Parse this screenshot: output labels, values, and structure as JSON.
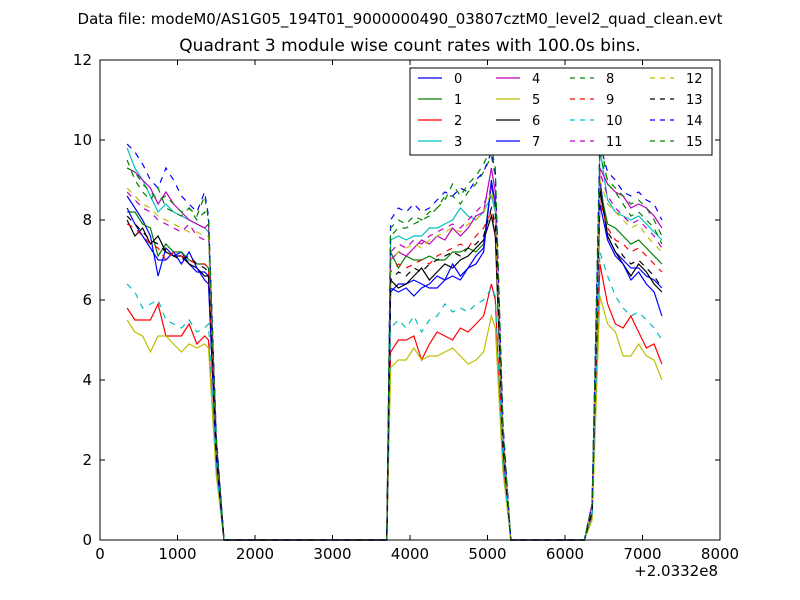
{
  "figure": {
    "suptitle": "Data file: modeM0/AS1G05_194T01_9000000490_03807cztM0_level2_quad_clean.evt",
    "x_offset_label": "+2.0332e8"
  },
  "chart_data": {
    "type": "line",
    "title": "Quadrant 3 module wise count rates with 100.0s bins.",
    "xlabel": "",
    "ylabel": "",
    "xlim": [
      0,
      8000
    ],
    "ylim": [
      0,
      12
    ],
    "x_ticks": [
      "0",
      "1000",
      "2000",
      "3000",
      "4000",
      "5000",
      "6000",
      "7000",
      "8000"
    ],
    "y_ticks": [
      "0",
      "2",
      "4",
      "6",
      "8",
      "10",
      "12"
    ],
    "grid": false,
    "legend_position": "top-right",
    "legend_columns": 4,
    "x": [
      350,
      450,
      550,
      650,
      750,
      850,
      950,
      1050,
      1150,
      1250,
      1350,
      1400,
      1500,
      1600,
      3700,
      3750,
      3850,
      3950,
      4050,
      4150,
      4250,
      4350,
      4450,
      4550,
      4650,
      4750,
      4850,
      4950,
      5050,
      5100,
      5200,
      5300,
      6250,
      6350,
      6450,
      6550,
      6650,
      6750,
      6850,
      6950,
      7050,
      7150,
      7250
    ],
    "series": [
      {
        "name": "0",
        "color": "#0000ff",
        "dash": "solid",
        "values": [
          8.6,
          8.3,
          8.0,
          7.6,
          6.6,
          7.3,
          7.1,
          7.2,
          6.9,
          6.7,
          6.7,
          6.6,
          2.2,
          0,
          0,
          6.2,
          6.4,
          6.4,
          6.5,
          6.4,
          6.3,
          6.3,
          6.5,
          6.6,
          6.5,
          6.8,
          6.9,
          7.2,
          9.0,
          8.4,
          2.5,
          0,
          0,
          0.7,
          9.0,
          7.6,
          7.2,
          7.0,
          6.8,
          6.8,
          6.6,
          6.5,
          6.3
        ]
      },
      {
        "name": "1",
        "color": "#008000",
        "dash": "solid",
        "values": [
          8.2,
          8.2,
          7.9,
          7.8,
          7.1,
          7.4,
          7.2,
          7.2,
          7.0,
          6.9,
          6.9,
          6.8,
          2.2,
          0,
          0,
          7.2,
          6.8,
          7.1,
          7.0,
          7.0,
          7.1,
          7.0,
          7.0,
          7.2,
          7.2,
          7.3,
          7.2,
          7.4,
          8.9,
          8.3,
          2.5,
          0,
          0,
          0.8,
          8.8,
          7.9,
          7.8,
          7.6,
          7.4,
          7.5,
          7.3,
          7.1,
          6.9
        ]
      },
      {
        "name": "2",
        "color": "#ff0000",
        "dash": "solid",
        "values": [
          5.8,
          5.5,
          5.5,
          5.5,
          5.9,
          5.1,
          5.1,
          5.1,
          5.4,
          4.9,
          5.1,
          5.0,
          1.7,
          0,
          0,
          4.7,
          5.0,
          5.0,
          5.1,
          4.5,
          4.9,
          5.2,
          5.1,
          5.0,
          5.3,
          5.2,
          5.4,
          5.6,
          6.4,
          6.0,
          1.9,
          0,
          0,
          0.6,
          6.9,
          5.9,
          5.4,
          5.3,
          5.6,
          5.2,
          4.8,
          4.9,
          4.4
        ]
      },
      {
        "name": "3",
        "color": "#00bfbf",
        "dash": "solid",
        "values": [
          9.8,
          9.3,
          9.0,
          8.6,
          8.2,
          8.4,
          8.2,
          8.1,
          8.0,
          7.9,
          7.8,
          7.7,
          2.5,
          0,
          0,
          7.5,
          7.6,
          7.5,
          7.6,
          7.6,
          7.8,
          7.8,
          7.9,
          8.0,
          8.3,
          8.1,
          8.0,
          8.2,
          8.6,
          8.2,
          2.6,
          0,
          0,
          0.9,
          9.8,
          8.5,
          8.2,
          8.1,
          8.0,
          8.1,
          7.9,
          7.7,
          7.5
        ]
      },
      {
        "name": "4",
        "color": "#bf00bf",
        "dash": "solid",
        "values": [
          9.3,
          9.2,
          9.0,
          8.8,
          8.4,
          8.7,
          8.4,
          8.2,
          8.0,
          7.9,
          7.8,
          7.9,
          2.5,
          0,
          0,
          7.0,
          7.2,
          7.1,
          7.3,
          7.5,
          7.4,
          7.6,
          7.5,
          7.8,
          7.6,
          7.8,
          8.1,
          8.2,
          9.3,
          8.7,
          2.7,
          0,
          0,
          0.9,
          9.3,
          8.9,
          8.7,
          8.6,
          8.3,
          8.4,
          8.3,
          8.1,
          7.8
        ]
      },
      {
        "name": "5",
        "color": "#bfbf00",
        "dash": "solid",
        "values": [
          5.5,
          5.2,
          5.1,
          4.7,
          5.1,
          5.1,
          4.9,
          4.7,
          4.9,
          4.8,
          4.9,
          4.8,
          1.6,
          0,
          0,
          4.3,
          4.5,
          4.5,
          4.8,
          4.5,
          4.6,
          4.6,
          4.7,
          4.8,
          4.6,
          4.4,
          4.5,
          4.7,
          5.6,
          5.3,
          1.7,
          0,
          0,
          0.5,
          6.1,
          5.4,
          5.2,
          4.6,
          4.6,
          4.9,
          4.6,
          4.5,
          4.0
        ]
      },
      {
        "name": "6",
        "color": "#000000",
        "dash": "solid",
        "values": [
          8.0,
          7.6,
          7.8,
          7.4,
          7.6,
          7.2,
          7.1,
          7.1,
          6.9,
          6.8,
          6.6,
          6.6,
          2.1,
          0,
          0,
          6.5,
          6.3,
          6.4,
          6.6,
          6.8,
          6.5,
          6.7,
          6.9,
          6.8,
          7.0,
          7.1,
          7.3,
          7.5,
          8.1,
          7.6,
          2.4,
          0,
          0,
          0.7,
          8.8,
          7.6,
          7.2,
          6.9,
          6.6,
          6.9,
          6.7,
          6.4,
          6.2
        ]
      },
      {
        "name": "7",
        "color": "#0000ff",
        "dash": "solid",
        "values": [
          8.3,
          7.9,
          7.6,
          7.3,
          7.0,
          7.0,
          7.2,
          6.9,
          7.2,
          6.8,
          6.5,
          6.4,
          2.0,
          0,
          0,
          6.3,
          6.2,
          6.3,
          6.1,
          6.3,
          6.4,
          6.6,
          6.5,
          6.9,
          6.6,
          6.8,
          7.1,
          7.3,
          8.9,
          8.4,
          2.3,
          0,
          0,
          0.7,
          8.4,
          7.5,
          7.1,
          6.9,
          6.5,
          6.7,
          6.4,
          6.2,
          5.6
        ]
      },
      {
        "name": "8",
        "color": "#008000",
        "dash": "dash",
        "values": [
          9.5,
          9.0,
          8.7,
          8.5,
          8.8,
          8.3,
          8.2,
          8.1,
          8.3,
          8.0,
          8.2,
          8.0,
          2.5,
          0,
          0,
          7.6,
          7.8,
          7.8,
          7.9,
          8.0,
          8.1,
          8.3,
          8.6,
          8.6,
          8.4,
          8.7,
          8.9,
          9.2,
          9.6,
          9.1,
          2.8,
          0,
          0,
          0.9,
          10.1,
          8.9,
          8.7,
          8.4,
          8.1,
          8.2,
          8.0,
          7.8,
          7.4
        ]
      },
      {
        "name": "9",
        "color": "#ff0000",
        "dash": "dash",
        "values": [
          7.9,
          7.8,
          7.6,
          7.4,
          7.3,
          7.0,
          7.2,
          7.1,
          7.0,
          6.9,
          6.9,
          6.8,
          2.2,
          0,
          0,
          6.7,
          6.9,
          6.8,
          6.9,
          7.0,
          6.9,
          7.1,
          7.2,
          7.3,
          7.4,
          7.3,
          7.6,
          7.8,
          8.2,
          7.8,
          2.4,
          0,
          0,
          0.8,
          8.5,
          7.8,
          7.5,
          7.4,
          7.2,
          7.3,
          7.1,
          6.9,
          6.7
        ]
      },
      {
        "name": "10",
        "color": "#00bfbf",
        "dash": "dash",
        "values": [
          6.4,
          6.2,
          5.8,
          5.9,
          6.0,
          5.5,
          5.4,
          5.3,
          5.5,
          5.2,
          5.3,
          5.4,
          1.8,
          0,
          0,
          5.3,
          5.5,
          5.3,
          5.6,
          5.2,
          5.5,
          5.6,
          5.9,
          5.7,
          5.8,
          5.7,
          5.9,
          6.0,
          6.3,
          6.1,
          1.9,
          0,
          0,
          0.6,
          7.2,
          6.6,
          6.1,
          5.8,
          5.6,
          5.7,
          5.5,
          5.3,
          5.0
        ]
      },
      {
        "name": "11",
        "color": "#bf00bf",
        "dash": "dash",
        "values": [
          8.7,
          8.5,
          8.3,
          8.2,
          8.0,
          7.9,
          7.8,
          7.7,
          7.9,
          7.6,
          7.5,
          7.6,
          2.4,
          0,
          0,
          7.2,
          7.4,
          7.3,
          7.5,
          7.4,
          7.6,
          7.7,
          7.8,
          7.9,
          7.8,
          8.0,
          8.2,
          8.4,
          8.8,
          8.4,
          2.6,
          0,
          0,
          0.8,
          9.2,
          8.6,
          8.3,
          8.1,
          7.9,
          8.0,
          7.8,
          7.6,
          7.3
        ]
      },
      {
        "name": "12",
        "color": "#bfbf00",
        "dash": "dash",
        "values": [
          8.8,
          8.6,
          8.4,
          8.3,
          8.1,
          8.0,
          7.9,
          7.8,
          7.7,
          7.7,
          7.6,
          7.6,
          2.4,
          0,
          0,
          7.0,
          7.2,
          7.3,
          7.4,
          7.3,
          7.5,
          7.6,
          7.7,
          7.8,
          7.7,
          7.9,
          8.0,
          8.2,
          8.7,
          8.3,
          2.6,
          0,
          0,
          0.8,
          9.0,
          8.4,
          8.2,
          8.0,
          7.8,
          7.9,
          7.6,
          7.4,
          7.2
        ]
      },
      {
        "name": "13",
        "color": "#000000",
        "dash": "dash",
        "values": [
          8.1,
          7.9,
          7.7,
          7.5,
          7.4,
          7.2,
          7.1,
          7.0,
          7.1,
          6.9,
          6.8,
          6.7,
          2.2,
          0,
          0,
          6.5,
          6.7,
          6.6,
          6.8,
          6.7,
          6.9,
          7.0,
          7.1,
          7.2,
          7.1,
          7.3,
          7.4,
          7.6,
          8.3,
          7.9,
          2.4,
          0,
          0,
          0.7,
          8.7,
          7.7,
          7.4,
          7.1,
          6.9,
          7.0,
          6.8,
          6.6,
          6.3
        ]
      },
      {
        "name": "14",
        "color": "#0000ff",
        "dash": "dash",
        "values": [
          9.9,
          9.7,
          9.4,
          9.0,
          8.8,
          9.3,
          9.0,
          8.6,
          8.4,
          8.2,
          8.7,
          8.1,
          2.6,
          0,
          0,
          8.0,
          8.3,
          8.2,
          8.4,
          8.2,
          8.3,
          8.5,
          8.7,
          8.6,
          8.8,
          8.7,
          9.0,
          9.2,
          9.7,
          9.2,
          2.9,
          0,
          0,
          0.9,
          9.9,
          9.2,
          9.0,
          8.7,
          8.6,
          8.7,
          8.5,
          8.4,
          8.0
        ]
      },
      {
        "name": "15",
        "color": "#008000",
        "dash": "dash",
        "values": [
          9.3,
          9.2,
          8.9,
          8.7,
          8.5,
          8.6,
          8.4,
          8.2,
          8.3,
          8.1,
          8.6,
          8.0,
          2.5,
          0,
          0,
          7.8,
          8.0,
          7.9,
          8.1,
          8.0,
          8.2,
          8.3,
          8.5,
          8.9,
          8.6,
          8.9,
          9.1,
          9.4,
          9.8,
          9.3,
          2.8,
          0,
          0,
          0.9,
          9.6,
          9.0,
          8.8,
          8.6,
          8.4,
          8.5,
          8.3,
          8.0,
          7.6
        ]
      }
    ]
  }
}
